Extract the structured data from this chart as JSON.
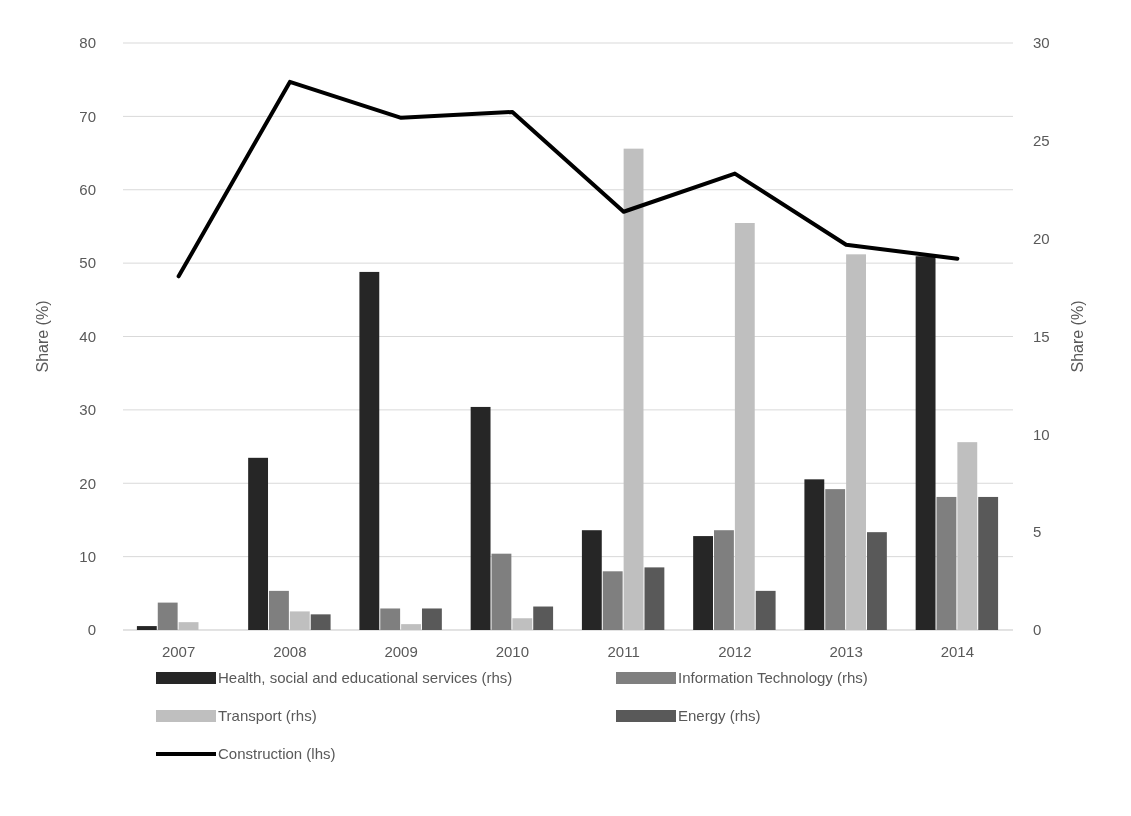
{
  "chart_data": {
    "type": "bar",
    "categories": [
      "2007",
      "2008",
      "2009",
      "2010",
      "2011",
      "2012",
      "2013",
      "2014"
    ],
    "ylabel": "Share (%)",
    "y2label": "Share (%)",
    "ylim": [
      0,
      80
    ],
    "yticks": [
      0,
      10,
      20,
      30,
      40,
      50,
      60,
      70,
      80
    ],
    "y2lim": [
      0,
      30
    ],
    "y2ticks": [
      0,
      5,
      10,
      15,
      20,
      25,
      30
    ],
    "grid": "y",
    "legend": "bottom",
    "series": [
      {
        "name": "Health, social and educational services (rhs)",
        "color": "#262626",
        "axis": "y2",
        "values": [
          0.2,
          8.8,
          18.3,
          11.4,
          5.1,
          4.8,
          7.7,
          19.1
        ]
      },
      {
        "name": "Information Technology (rhs)",
        "color": "#7f7f7f",
        "axis": "y2",
        "values": [
          1.4,
          2.0,
          1.1,
          3.9,
          3.0,
          5.1,
          7.2,
          6.8
        ]
      },
      {
        "name": "Transport (rhs)",
        "color": "#bfbfbf",
        "axis": "y2",
        "values": [
          0.4,
          0.95,
          0.3,
          0.6,
          24.6,
          20.8,
          19.2,
          9.6
        ]
      },
      {
        "name": "Energy (rhs)",
        "color": "#595959",
        "axis": "y2",
        "values": [
          0,
          0.8,
          1.1,
          1.2,
          3.2,
          2.0,
          5.0,
          6.8
        ]
      },
      {
        "name": "Construction (lhs)",
        "color": "#000000",
        "type": "line",
        "axis": "y",
        "values": [
          48.2,
          74.7,
          69.8,
          70.6,
          57.0,
          62.2,
          52.5,
          50.6
        ]
      }
    ]
  }
}
